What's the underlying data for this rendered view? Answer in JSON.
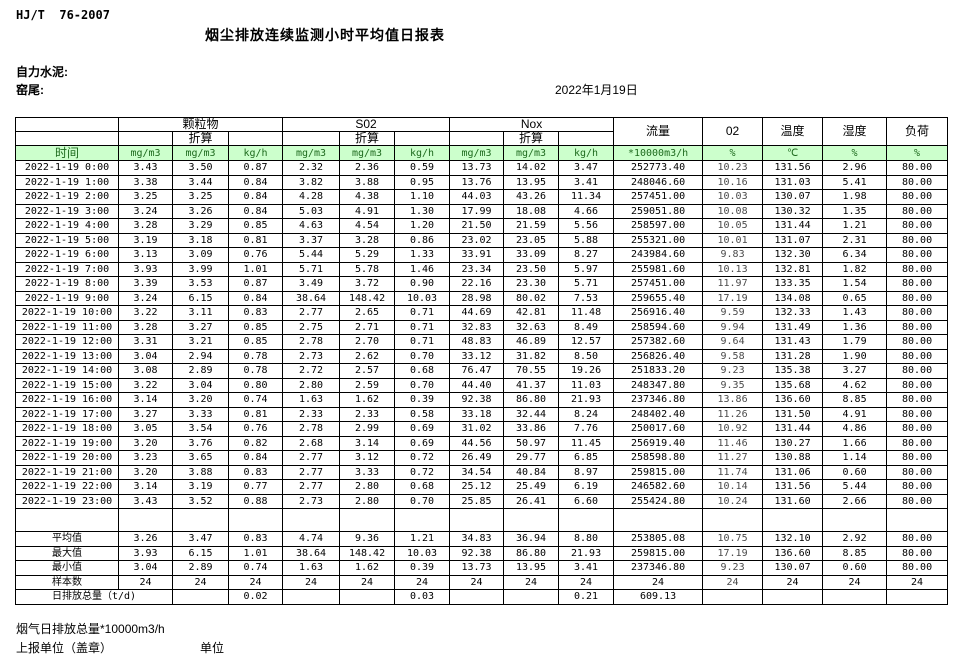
{
  "meta": {
    "standard": "HJ/T  76-2007",
    "title": "烟尘排放连续监测小时平均值日报表",
    "company": "自力水泥:",
    "location": "窑尾:",
    "date": "2022年1月19日"
  },
  "table": {
    "time_header": "时间",
    "group_headers": [
      "颗粒物",
      "S02",
      "Nox"
    ],
    "subheader": "折算",
    "right_headers": [
      "流量",
      "02",
      "温度",
      "湿度",
      "负荷"
    ],
    "units": [
      "mg/m3",
      "mg/m3",
      "kg/h",
      "mg/m3",
      "mg/m3",
      "kg/h",
      "mg/m3",
      "mg/m3",
      "kg/h",
      "*10000m3/h",
      "%",
      "℃",
      "%",
      "%"
    ],
    "rows": [
      {
        "time": "2022-1-19 0:00",
        "values": [
          "3.43",
          "3.50",
          "0.87",
          "2.32",
          "2.36",
          "0.59",
          "13.73",
          "14.02",
          "3.47",
          "252773.40",
          "10.23",
          "131.56",
          "2.96",
          "80.00"
        ]
      },
      {
        "time": "2022-1-19 1:00",
        "values": [
          "3.38",
          "3.44",
          "0.84",
          "3.82",
          "3.88",
          "0.95",
          "13.76",
          "13.95",
          "3.41",
          "248046.60",
          "10.16",
          "131.03",
          "5.41",
          "80.00"
        ]
      },
      {
        "time": "2022-1-19 2:00",
        "values": [
          "3.25",
          "3.25",
          "0.84",
          "4.28",
          "4.38",
          "1.10",
          "44.03",
          "43.26",
          "11.34",
          "257451.00",
          "10.03",
          "130.07",
          "1.98",
          "80.00"
        ]
      },
      {
        "time": "2022-1-19 3:00",
        "values": [
          "3.24",
          "3.26",
          "0.84",
          "5.03",
          "4.91",
          "1.30",
          "17.99",
          "18.08",
          "4.66",
          "259051.80",
          "10.08",
          "130.32",
          "1.35",
          "80.00"
        ]
      },
      {
        "time": "2022-1-19 4:00",
        "values": [
          "3.28",
          "3.29",
          "0.85",
          "4.63",
          "4.54",
          "1.20",
          "21.50",
          "21.59",
          "5.56",
          "258597.00",
          "10.05",
          "131.44",
          "1.21",
          "80.00"
        ]
      },
      {
        "time": "2022-1-19 5:00",
        "values": [
          "3.19",
          "3.18",
          "0.81",
          "3.37",
          "3.28",
          "0.86",
          "23.02",
          "23.05",
          "5.88",
          "255321.00",
          "10.01",
          "131.07",
          "2.31",
          "80.00"
        ]
      },
      {
        "time": "2022-1-19 6:00",
        "values": [
          "3.13",
          "3.09",
          "0.76",
          "5.44",
          "5.29",
          "1.33",
          "33.91",
          "33.09",
          "8.27",
          "243984.60",
          "9.83",
          "132.30",
          "6.34",
          "80.00"
        ]
      },
      {
        "time": "2022-1-19 7:00",
        "values": [
          "3.93",
          "3.99",
          "1.01",
          "5.71",
          "5.78",
          "1.46",
          "23.34",
          "23.50",
          "5.97",
          "255981.60",
          "10.13",
          "132.81",
          "1.82",
          "80.00"
        ]
      },
      {
        "time": "2022-1-19 8:00",
        "values": [
          "3.39",
          "3.53",
          "0.87",
          "3.49",
          "3.72",
          "0.90",
          "22.16",
          "23.30",
          "5.71",
          "257451.00",
          "11.97",
          "133.35",
          "1.54",
          "80.00"
        ]
      },
      {
        "time": "2022-1-19 9:00",
        "values": [
          "3.24",
          "6.15",
          "0.84",
          "38.64",
          "148.42",
          "10.03",
          "28.98",
          "80.02",
          "7.53",
          "259655.40",
          "17.19",
          "134.08",
          "0.65",
          "80.00"
        ]
      },
      {
        "time": "2022-1-19 10:00",
        "values": [
          "3.22",
          "3.11",
          "0.83",
          "2.77",
          "2.65",
          "0.71",
          "44.69",
          "42.81",
          "11.48",
          "256916.40",
          "9.59",
          "132.33",
          "1.43",
          "80.00"
        ]
      },
      {
        "time": "2022-1-19 11:00",
        "values": [
          "3.28",
          "3.27",
          "0.85",
          "2.75",
          "2.71",
          "0.71",
          "32.83",
          "32.63",
          "8.49",
          "258594.60",
          "9.94",
          "131.49",
          "1.36",
          "80.00"
        ]
      },
      {
        "time": "2022-1-19 12:00",
        "values": [
          "3.31",
          "3.21",
          "0.85",
          "2.78",
          "2.70",
          "0.71",
          "48.83",
          "46.89",
          "12.57",
          "257382.60",
          "9.64",
          "131.43",
          "1.79",
          "80.00"
        ]
      },
      {
        "time": "2022-1-19 13:00",
        "values": [
          "3.04",
          "2.94",
          "0.78",
          "2.73",
          "2.62",
          "0.70",
          "33.12",
          "31.82",
          "8.50",
          "256826.40",
          "9.58",
          "131.28",
          "1.90",
          "80.00"
        ]
      },
      {
        "time": "2022-1-19 14:00",
        "values": [
          "3.08",
          "2.89",
          "0.78",
          "2.72",
          "2.57",
          "0.68",
          "76.47",
          "70.55",
          "19.26",
          "251833.20",
          "9.23",
          "135.38",
          "3.27",
          "80.00"
        ]
      },
      {
        "time": "2022-1-19 15:00",
        "values": [
          "3.22",
          "3.04",
          "0.80",
          "2.80",
          "2.59",
          "0.70",
          "44.40",
          "41.37",
          "11.03",
          "248347.80",
          "9.35",
          "135.68",
          "4.62",
          "80.00"
        ]
      },
      {
        "time": "2022-1-19 16:00",
        "values": [
          "3.14",
          "3.20",
          "0.74",
          "1.63",
          "1.62",
          "0.39",
          "92.38",
          "86.80",
          "21.93",
          "237346.80",
          "13.86",
          "136.60",
          "8.85",
          "80.00"
        ]
      },
      {
        "time": "2022-1-19 17:00",
        "values": [
          "3.27",
          "3.33",
          "0.81",
          "2.33",
          "2.33",
          "0.58",
          "33.18",
          "32.44",
          "8.24",
          "248402.40",
          "11.26",
          "131.50",
          "4.91",
          "80.00"
        ]
      },
      {
        "time": "2022-1-19 18:00",
        "values": [
          "3.05",
          "3.54",
          "0.76",
          "2.78",
          "2.99",
          "0.69",
          "31.02",
          "33.86",
          "7.76",
          "250017.60",
          "10.92",
          "131.44",
          "4.86",
          "80.00"
        ]
      },
      {
        "time": "2022-1-19 19:00",
        "values": [
          "3.20",
          "3.76",
          "0.82",
          "2.68",
          "3.14",
          "0.69",
          "44.56",
          "50.97",
          "11.45",
          "256919.40",
          "11.46",
          "130.27",
          "1.66",
          "80.00"
        ]
      },
      {
        "time": "2022-1-19 20:00",
        "values": [
          "3.23",
          "3.65",
          "0.84",
          "2.77",
          "3.12",
          "0.72",
          "26.49",
          "29.77",
          "6.85",
          "258598.80",
          "11.27",
          "130.88",
          "1.14",
          "80.00"
        ]
      },
      {
        "time": "2022-1-19 21:00",
        "values": [
          "3.20",
          "3.88",
          "0.83",
          "2.77",
          "3.33",
          "0.72",
          "34.54",
          "40.84",
          "8.97",
          "259815.00",
          "11.74",
          "131.06",
          "0.60",
          "80.00"
        ]
      },
      {
        "time": "2022-1-19 22:00",
        "values": [
          "3.14",
          "3.19",
          "0.77",
          "2.77",
          "2.80",
          "0.68",
          "25.12",
          "25.49",
          "6.19",
          "246582.60",
          "10.14",
          "131.56",
          "5.44",
          "80.00"
        ]
      },
      {
        "time": "2022-1-19 23:00",
        "values": [
          "3.43",
          "3.52",
          "0.88",
          "2.73",
          "2.80",
          "0.70",
          "25.85",
          "26.41",
          "6.60",
          "255424.80",
          "10.24",
          "131.60",
          "2.66",
          "80.00"
        ]
      }
    ],
    "summary": [
      {
        "label": "平均值",
        "values": [
          "3.26",
          "3.47",
          "0.83",
          "4.74",
          "9.36",
          "1.21",
          "34.83",
          "36.94",
          "8.80",
          "253805.08",
          "10.75",
          "132.10",
          "2.92",
          "80.00"
        ]
      },
      {
        "label": "最大值",
        "values": [
          "3.93",
          "6.15",
          "1.01",
          "38.64",
          "148.42",
          "10.03",
          "92.38",
          "86.80",
          "21.93",
          "259815.00",
          "17.19",
          "136.60",
          "8.85",
          "80.00"
        ]
      },
      {
        "label": "最小值",
        "values": [
          "3.04",
          "2.89",
          "0.74",
          "1.63",
          "1.62",
          "0.39",
          "13.73",
          "13.95",
          "3.41",
          "237346.80",
          "9.23",
          "130.07",
          "0.60",
          "80.00"
        ]
      },
      {
        "label": "样本数",
        "values": [
          "24",
          "24",
          "24",
          "24",
          "24",
          "24",
          "24",
          "24",
          "24",
          "24",
          "24",
          "24",
          "24",
          "24"
        ]
      }
    ],
    "daily_total": {
      "label": "日排放总量（t/d)",
      "values": [
        "",
        "0.02",
        "",
        "",
        "0.03",
        "",
        "",
        "0.21",
        "609.13",
        "",
        "",
        "",
        ""
      ]
    }
  },
  "footer": {
    "note": "烟气日排放总量*10000m3/h",
    "report_unit": "上报单位（盖章）",
    "unit": "单位"
  },
  "colors": {
    "header_bg": "#ccffcc",
    "header_text": "#1e6b1e",
    "border": "#000000"
  }
}
